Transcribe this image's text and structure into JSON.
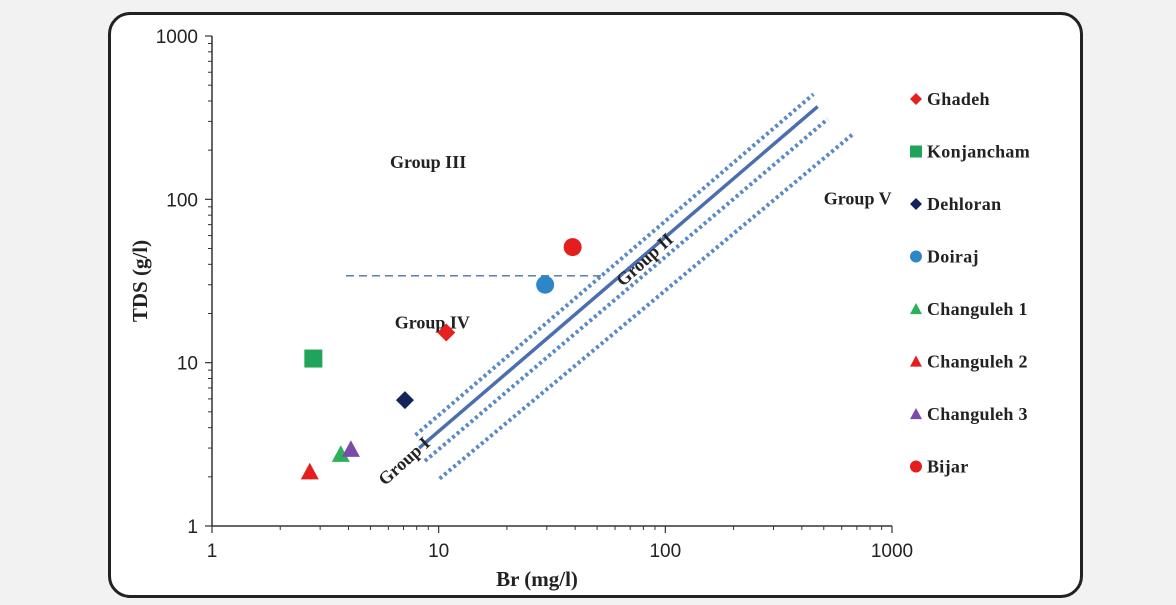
{
  "chart_data": {
    "type": "scatter",
    "xlabel": "Br (mg/l)",
    "ylabel": "TDS (g/l)",
    "x_scale": "log",
    "y_scale": "log",
    "xlim": [
      1,
      1000
    ],
    "ylim": [
      1,
      1000
    ],
    "x_ticks": [
      "1",
      "10",
      "100",
      "1000"
    ],
    "y_ticks": [
      "1",
      "10",
      "100",
      "1000"
    ],
    "grid": false,
    "legend_position": "right",
    "series": [
      {
        "name": "Ghadeh",
        "marker": "diamond",
        "color": "#e8201e",
        "points": [
          {
            "x": 10.8,
            "y": 15.3
          }
        ]
      },
      {
        "name": "Konjancham",
        "marker": "square",
        "color": "#20a35a",
        "points": [
          {
            "x": 2.8,
            "y": 10.6
          }
        ]
      },
      {
        "name": "Dehloran",
        "marker": "diamond",
        "color": "#12245a",
        "points": [
          {
            "x": 7.1,
            "y": 5.9
          }
        ]
      },
      {
        "name": "Doiraj",
        "marker": "circle",
        "color": "#2d86c8",
        "points": [
          {
            "x": 29.5,
            "y": 30
          }
        ]
      },
      {
        "name": "Changuleh 1",
        "marker": "triangle",
        "color": "#2eb05a",
        "points": [
          {
            "x": 3.7,
            "y": 2.75
          }
        ]
      },
      {
        "name": "Changuleh 2",
        "marker": "triangle",
        "color": "#e41e1e",
        "points": [
          {
            "x": 2.7,
            "y": 2.15
          }
        ]
      },
      {
        "name": "Changuleh 3",
        "marker": "triangle",
        "color": "#7a4bab",
        "points": [
          {
            "x": 4.1,
            "y": 2.95
          }
        ]
      },
      {
        "name": "Bijar",
        "marker": "circle",
        "color": "#e41e1e",
        "points": [
          {
            "x": 39,
            "y": 51
          }
        ]
      }
    ],
    "reference_lines": [
      {
        "style": "solid",
        "color": "#4a6fb0",
        "points": [
          {
            "x": 8.2,
            "y": 3.0
          },
          {
            "x": 470,
            "y": 370
          }
        ]
      },
      {
        "style": "dotted",
        "color": "#5a8ac6",
        "points": [
          {
            "x": 7.9,
            "y": 3.6
          },
          {
            "x": 450,
            "y": 440
          }
        ]
      },
      {
        "style": "dotted",
        "color": "#5a8ac6",
        "points": [
          {
            "x": 8.7,
            "y": 2.5
          },
          {
            "x": 520,
            "y": 310
          }
        ]
      },
      {
        "style": "dotted",
        "color": "#5a8ac6",
        "points": [
          {
            "x": 10.1,
            "y": 1.95
          },
          {
            "x": 670,
            "y": 250
          }
        ]
      },
      {
        "style": "dashed",
        "color": "#4a6fb0",
        "points": [
          {
            "x": 3.9,
            "y": 34
          },
          {
            "x": 52,
            "y": 34
          }
        ]
      }
    ],
    "annotations": [
      {
        "text": "Group III",
        "x": 6.1,
        "y": 155,
        "rotation": 0
      },
      {
        "text": "Group IV",
        "x": 6.4,
        "y": 16.2,
        "rotation": 0
      },
      {
        "text": "Group V",
        "x": 500,
        "y": 93,
        "rotation": 0
      },
      {
        "text": "Group II",
        "x": 65,
        "y": 29,
        "rotation": -42
      },
      {
        "text": "Group I",
        "x": 5.8,
        "y": 1.75,
        "rotation": -42
      }
    ]
  }
}
